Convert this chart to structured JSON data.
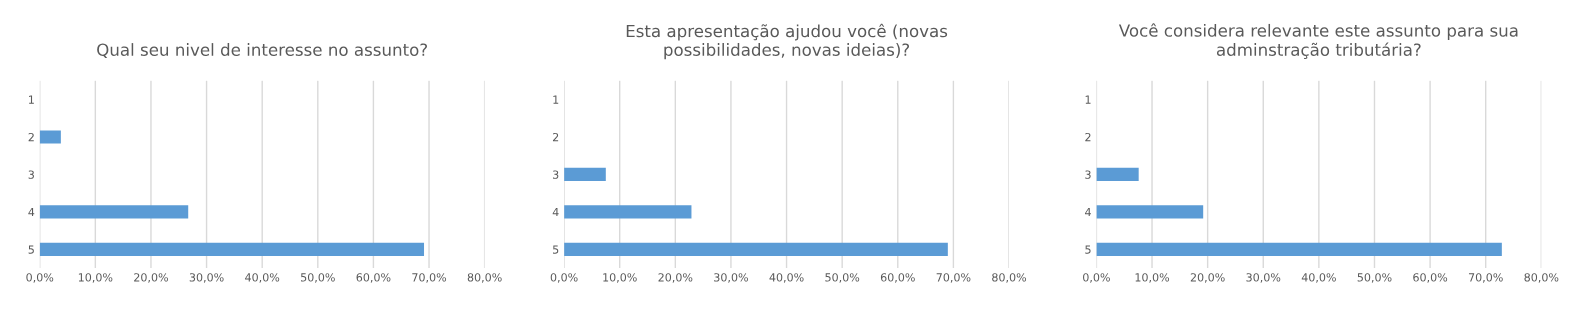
{
  "chart_data": [
    {
      "type": "bar",
      "orientation": "horizontal",
      "title": "Qual seu nivel de interesse no assunto?",
      "categories": [
        "1",
        "2",
        "3",
        "4",
        "5"
      ],
      "values": [
        0,
        3.8,
        0,
        26.7,
        69.1
      ],
      "color": "#5b9bd5",
      "xlim": [
        0,
        80
      ],
      "xticks": [
        {
          "value": 0,
          "label": "0,0%"
        },
        {
          "value": 10,
          "label": "10,0%"
        },
        {
          "value": 20,
          "label": "20,0%"
        },
        {
          "value": 30,
          "label": "30,0%"
        },
        {
          "value": 40,
          "label": "40,0%"
        },
        {
          "value": 50,
          "label": "50,0%"
        },
        {
          "value": 60,
          "label": "60,0%"
        },
        {
          "value": 70,
          "label": "70,0%"
        },
        {
          "value": 80,
          "label": "80,0%"
        }
      ],
      "grid": "x",
      "legend": false
    },
    {
      "type": "bar",
      "orientation": "horizontal",
      "title": "Esta apresentação ajudou você (novas\npossibilidades, novas ideias)?",
      "categories": [
        "1",
        "2",
        "3",
        "4",
        "5"
      ],
      "values": [
        0,
        0,
        7.5,
        22.9,
        69.0
      ],
      "color": "#5b9bd5",
      "xlim": [
        0,
        80
      ],
      "xticks": [
        {
          "value": 0,
          "label": "0,0%"
        },
        {
          "value": 10,
          "label": "10,0%"
        },
        {
          "value": 20,
          "label": "20,0%"
        },
        {
          "value": 30,
          "label": "30,0%"
        },
        {
          "value": 40,
          "label": "40,0%"
        },
        {
          "value": 50,
          "label": "50,0%"
        },
        {
          "value": 60,
          "label": "60,0%"
        },
        {
          "value": 70,
          "label": "70,0%"
        },
        {
          "value": 80,
          "label": "80,0%"
        }
      ],
      "grid": "x",
      "legend": false
    },
    {
      "type": "bar",
      "orientation": "horizontal",
      "title": "Você considera relevante este assunto para sua\nadminstração tributária?",
      "categories": [
        "1",
        "2",
        "3",
        "4",
        "5"
      ],
      "values": [
        0,
        0,
        7.6,
        19.2,
        72.9
      ],
      "color": "#5b9bd5",
      "xlim": [
        0,
        80
      ],
      "xticks": [
        {
          "value": 0,
          "label": "0,0%"
        },
        {
          "value": 10,
          "label": "10,0%"
        },
        {
          "value": 20,
          "label": "20,0%"
        },
        {
          "value": 30,
          "label": "30,0%"
        },
        {
          "value": 40,
          "label": "40,0%"
        },
        {
          "value": 50,
          "label": "50,0%"
        },
        {
          "value": 60,
          "label": "60,0%"
        },
        {
          "value": 70,
          "label": "70,0%"
        },
        {
          "value": 80,
          "label": "80,0%"
        }
      ],
      "grid": "x",
      "legend": false
    }
  ]
}
